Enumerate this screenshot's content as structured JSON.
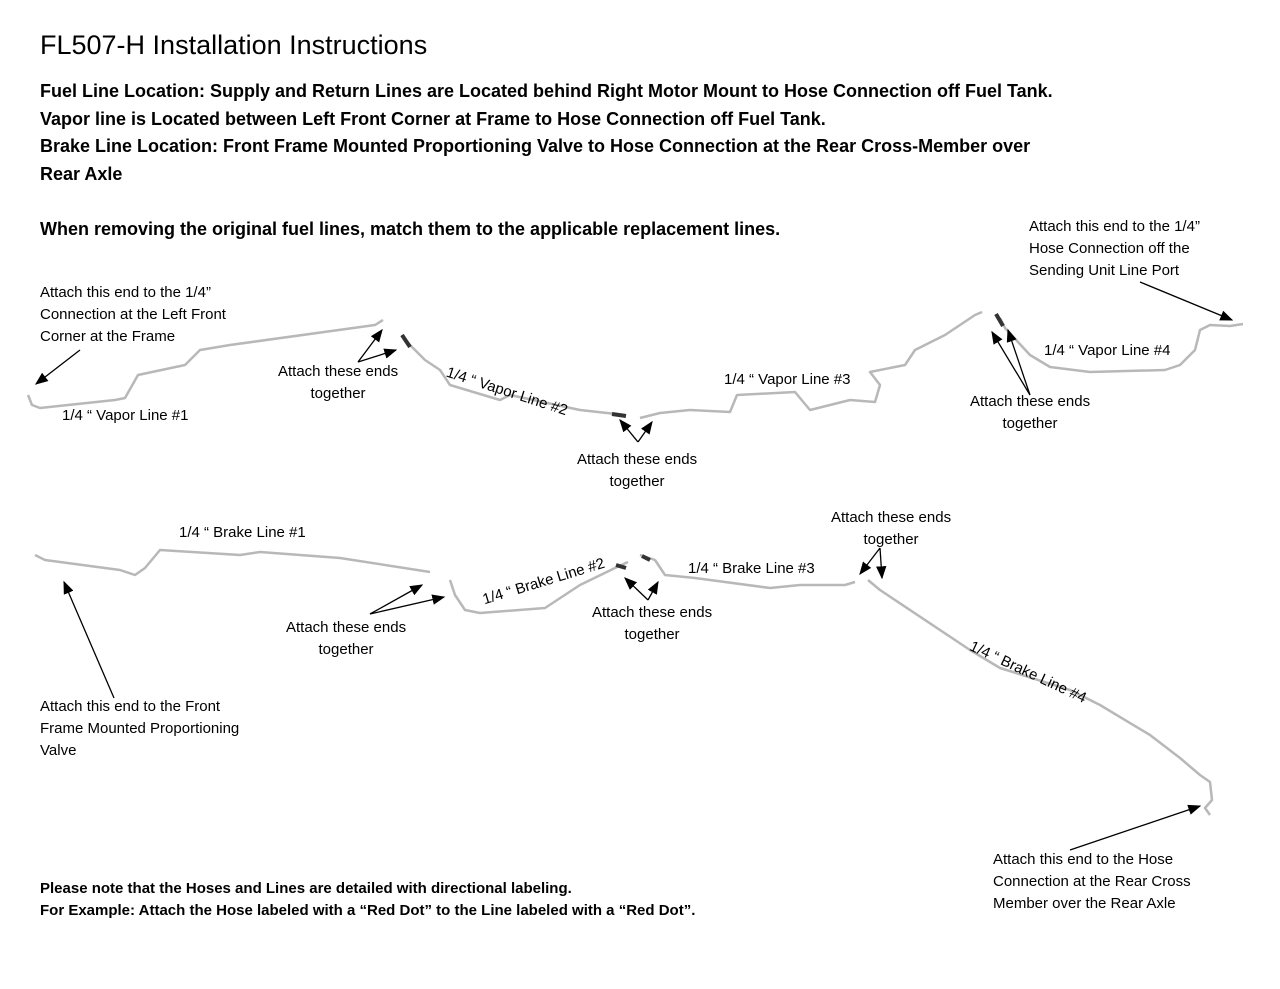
{
  "title": "FL507-H Installation Instructions",
  "header_lines": [
    "Fuel Line Location:  Supply and Return Lines are Located behind Right Motor Mount to Hose Connection off Fuel Tank.",
    "Vapor line is Located between Left Front Corner at Frame to Hose Connection off Fuel Tank.",
    "Brake Line Location: Front Frame Mounted Proportioning Valve to Hose Connection at the Rear Cross-Member over",
    "Rear Axle"
  ],
  "instruction": "When removing the original fuel lines, match them to the applicable replacement lines.",
  "lines": {
    "vapor1": "1/4 “ Vapor Line #1",
    "vapor2": "1/4 “ Vapor Line #2",
    "vapor3": "1/4 “ Vapor Line #3",
    "vapor4": "1/4 “ Vapor Line #4",
    "brake1": "1/4 “ Brake Line #1",
    "brake2": "1/4 “ Brake Line #2",
    "brake3": "1/4 “ Brake Line #3",
    "brake4": "1/4 “ Brake Line #4"
  },
  "notes": {
    "left_front": [
      "Attach this end to the 1/4”",
      "Connection at the Left Front",
      "Corner at the Frame"
    ],
    "sending_unit": [
      "Attach this end to the 1/4”",
      "Hose Connection off the",
      "Sending Unit Line Port"
    ],
    "prop_valve": [
      "Attach this end to the Front",
      "Frame Mounted Proportioning",
      "Valve"
    ],
    "rear_cross": [
      "Attach this end to the Hose",
      "Connection at the Rear Cross",
      "Member over the Rear Axle"
    ],
    "attach_line1": "Attach these ends",
    "attach_line2": "together"
  },
  "footer": [
    "Please note that the Hoses and Lines are detailed with directional labeling.",
    "For Example: Attach the Hose labeled with a “Red Dot” to the Line labeled with a “Red Dot”."
  ],
  "colors": {
    "line": "#b8b8b8",
    "fitting": "#333333"
  }
}
